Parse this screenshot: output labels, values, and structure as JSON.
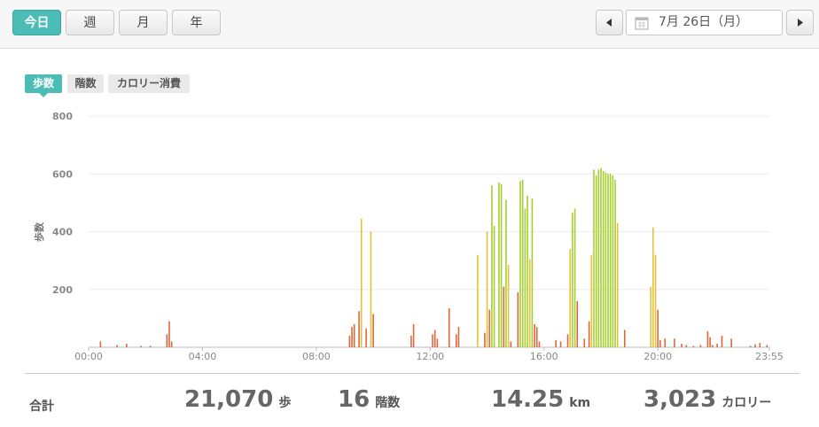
{
  "tabs": [
    "今日",
    "週",
    "月",
    "年"
  ],
  "date": "7月 26日（月）",
  "metric_tabs": [
    "歩数",
    "階数",
    "カロリー消費"
  ],
  "chart_data": {
    "type": "bar",
    "y_label": "歩数",
    "x": [
      25,
      60,
      80,
      110,
      130,
      165,
      170,
      175,
      550,
      555,
      560,
      570,
      575,
      585,
      595,
      600,
      680,
      685,
      725,
      730,
      735,
      760,
      775,
      780,
      820,
      835,
      840,
      845,
      850,
      855,
      865,
      870,
      875,
      880,
      885,
      890,
      905,
      910,
      915,
      920,
      925,
      930,
      935,
      940,
      945,
      950,
      985,
      995,
      1010,
      1015,
      1020,
      1025,
      1030,
      1045,
      1055,
      1060,
      1065,
      1070,
      1075,
      1080,
      1085,
      1090,
      1095,
      1100,
      1105,
      1110,
      1115,
      1130,
      1185,
      1190,
      1195,
      1200,
      1205,
      1215,
      1235,
      1250,
      1260,
      1275,
      1290,
      1305,
      1310,
      1315,
      1325,
      1335,
      1355,
      1395,
      1405,
      1415,
      1430
    ],
    "values": [
      20,
      8,
      12,
      5,
      5,
      45,
      90,
      20,
      40,
      70,
      80,
      125,
      445,
      65,
      400,
      115,
      40,
      80,
      45,
      60,
      30,
      135,
      45,
      70,
      320,
      50,
      400,
      130,
      560,
      420,
      570,
      565,
      210,
      510,
      285,
      20,
      190,
      575,
      580,
      480,
      525,
      305,
      515,
      80,
      70,
      20,
      25,
      20,
      45,
      340,
      465,
      480,
      160,
      30,
      90,
      320,
      615,
      595,
      615,
      620,
      610,
      605,
      600,
      600,
      595,
      580,
      430,
      60,
      210,
      415,
      320,
      130,
      25,
      30,
      30,
      12,
      8,
      5,
      8,
      55,
      35,
      8,
      12,
      40,
      30,
      5,
      10,
      15,
      8
    ],
    "colors": [
      "#e0673c",
      "#e0673c",
      "#e0673c",
      "#e0673c",
      "#e0673c",
      "#e0673c",
      "#e0673c",
      "#e0673c",
      "#e0673c",
      "#e0673c",
      "#e0673c",
      "#e0673c",
      "#e6c23a",
      "#e0673c",
      "#e6c23a",
      "#e0673c",
      "#e0673c",
      "#e0673c",
      "#e0673c",
      "#e0673c",
      "#e0673c",
      "#e0673c",
      "#e0673c",
      "#e0673c",
      "#e6c23a",
      "#e0673c",
      "#e6c23a",
      "#e0673c",
      "#a6cf2f",
      "#a6cf2f",
      "#a6cf2f",
      "#a6cf2f",
      "#e0673c",
      "#a6cf2f",
      "#e6c23a",
      "#e0673c",
      "#e0673c",
      "#a6cf2f",
      "#a6cf2f",
      "#a6cf2f",
      "#a6cf2f",
      "#e6c23a",
      "#a6cf2f",
      "#e0673c",
      "#e0673c",
      "#e0673c",
      "#e0673c",
      "#e0673c",
      "#e0673c",
      "#e6c23a",
      "#a6cf2f",
      "#a6cf2f",
      "#e0673c",
      "#e0673c",
      "#e0673c",
      "#e6c23a",
      "#a6cf2f",
      "#a6cf2f",
      "#a6cf2f",
      "#a6cf2f",
      "#a6cf2f",
      "#a6cf2f",
      "#a6cf2f",
      "#a6cf2f",
      "#a6cf2f",
      "#a6cf2f",
      "#e6c23a",
      "#e0673c",
      "#e6c23a",
      "#e6c23a",
      "#e6c23a",
      "#e0673c",
      "#e0673c",
      "#e0673c",
      "#e0673c",
      "#e0673c",
      "#e0673c",
      "#e0673c",
      "#e0673c",
      "#e0673c",
      "#e0673c",
      "#e0673c",
      "#e0673c",
      "#e0673c",
      "#e0673c",
      "#e0673c",
      "#e0673c",
      "#e0673c",
      "#e0673c"
    ],
    "xlim": [
      0,
      1435
    ],
    "xticks": [
      {
        "value": 0,
        "label": "00:00"
      },
      {
        "value": 240,
        "label": "04:00"
      },
      {
        "value": 480,
        "label": "08:00"
      },
      {
        "value": 720,
        "label": "12:00"
      },
      {
        "value": 960,
        "label": "16:00"
      },
      {
        "value": 1200,
        "label": "20:00"
      },
      {
        "value": 1435,
        "label": "23:55"
      }
    ],
    "ylim": [
      0,
      800
    ],
    "yticks": [
      200,
      400,
      600,
      800
    ],
    "grid": true
  },
  "summary": {
    "label": "合計",
    "items": [
      {
        "value": "21,070",
        "unit": "歩"
      },
      {
        "value": "16",
        "unit": "階数"
      },
      {
        "value": "14.25",
        "unit": "km"
      },
      {
        "value": "3,023",
        "unit": "カロリー"
      }
    ]
  }
}
